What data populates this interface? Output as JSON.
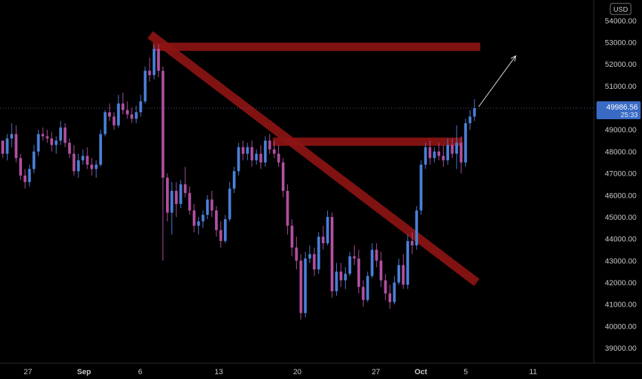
{
  "chart_data": {
    "type": "candlestick",
    "title": "",
    "xlabel": "",
    "ylabel": "",
    "currency_label": "USD",
    "ylim": [
      38400,
      54500
    ],
    "y_ticks": [
      39000,
      40000,
      41000,
      42000,
      43000,
      44000,
      45000,
      46000,
      47000,
      48000,
      49000,
      50000,
      51000,
      52000,
      53000,
      54000
    ],
    "y_tick_labels": [
      "39000.00",
      "40000.00",
      "41000.00",
      "42000.00",
      "43000.00",
      "44000.00",
      "45000.00",
      "46000.00",
      "47000.00",
      "48000.00",
      "49000.00",
      "50000.00",
      "51000.00",
      "52000.00",
      "53000.00",
      "54000.00"
    ],
    "x_ticks": [
      {
        "label": "27",
        "day": -5
      },
      {
        "label": "Sep",
        "day": 0
      },
      {
        "label": "6",
        "day": 5
      },
      {
        "label": "13",
        "day": 12
      },
      {
        "label": "20",
        "day": 19
      },
      {
        "label": "27",
        "day": 26
      },
      {
        "label": "Oct",
        "day": 30
      },
      {
        "label": "5",
        "day": 34
      },
      {
        "label": "11",
        "day": 40
      },
      {
        "label": "18",
        "day": 47
      }
    ],
    "last_price": "49986.56",
    "countdown": "25:33",
    "up_color": "#4a7fd6",
    "down_color": "#b14fa0",
    "zone_color": "#8c1414",
    "candles": [
      [
        48500,
        48500,
        47700,
        47900
      ],
      [
        47900,
        48800,
        47600,
        48600
      ],
      [
        48600,
        49300,
        48200,
        48800
      ],
      [
        48800,
        49200,
        47500,
        47700
      ],
      [
        47700,
        47900,
        46700,
        46900
      ],
      [
        46900,
        47200,
        46300,
        46600
      ],
      [
        46600,
        47400,
        46400,
        47200
      ],
      [
        47200,
        48300,
        47000,
        48000
      ],
      [
        48000,
        49000,
        47800,
        48800
      ],
      [
        48800,
        49100,
        48500,
        48700
      ],
      [
        48700,
        49000,
        48400,
        48600
      ],
      [
        48600,
        48900,
        48000,
        48300
      ],
      [
        48300,
        48700,
        47900,
        48500
      ],
      [
        48500,
        49400,
        48300,
        49100
      ],
      [
        49100,
        49300,
        48200,
        48400
      ],
      [
        48400,
        48600,
        47700,
        47900
      ],
      [
        47900,
        48300,
        46900,
        47100
      ],
      [
        47100,
        47900,
        46800,
        47600
      ],
      [
        47600,
        48100,
        47400,
        47800
      ],
      [
        47800,
        48200,
        47200,
        47400
      ],
      [
        47400,
        47700,
        46900,
        47200
      ],
      [
        47200,
        47600,
        46800,
        47400
      ],
      [
        47400,
        49000,
        47300,
        48800
      ],
      [
        48800,
        49900,
        48700,
        49800
      ],
      [
        49800,
        50200,
        49400,
        49600
      ],
      [
        49600,
        49800,
        49000,
        49200
      ],
      [
        49200,
        50600,
        49100,
        50200
      ],
      [
        50200,
        50700,
        49700,
        49900
      ],
      [
        49900,
        50300,
        49500,
        49700
      ],
      [
        49700,
        50000,
        49300,
        49500
      ],
      [
        49500,
        50100,
        49300,
        49800
      ],
      [
        49800,
        50600,
        49600,
        50300
      ],
      [
        50300,
        51900,
        50200,
        51700
      ],
      [
        51700,
        52300,
        51200,
        51500
      ],
      [
        51500,
        52900,
        51300,
        52700
      ],
      [
        52700,
        52900,
        51400,
        51700
      ],
      [
        51700,
        51900,
        43000,
        46800
      ],
      [
        46800,
        47000,
        44800,
        45200
      ],
      [
        45200,
        46600,
        44200,
        46200
      ],
      [
        46200,
        46600,
        45000,
        45600
      ],
      [
        45600,
        46700,
        45400,
        46500
      ],
      [
        46500,
        47300,
        45900,
        46100
      ],
      [
        46100,
        46400,
        45100,
        45300
      ],
      [
        45300,
        45600,
        44300,
        44600
      ],
      [
        44600,
        45000,
        44200,
        44800
      ],
      [
        44800,
        45300,
        44500,
        45100
      ],
      [
        45100,
        46000,
        44900,
        45800
      ],
      [
        45800,
        46200,
        45000,
        45300
      ],
      [
        45300,
        45500,
        44100,
        44400
      ],
      [
        44400,
        44800,
        43600,
        43900
      ],
      [
        43900,
        45100,
        43800,
        44900
      ],
      [
        44900,
        46600,
        44800,
        46300
      ],
      [
        46300,
        47300,
        46100,
        47100
      ],
      [
        47100,
        48400,
        46900,
        48200
      ],
      [
        48200,
        48500,
        47600,
        47900
      ],
      [
        47900,
        48400,
        47600,
        48200
      ],
      [
        48200,
        48500,
        47300,
        47600
      ],
      [
        47600,
        48100,
        47400,
        47900
      ],
      [
        47900,
        48300,
        47200,
        47500
      ],
      [
        47500,
        48700,
        47300,
        48500
      ],
      [
        48500,
        48800,
        47900,
        48100
      ],
      [
        48100,
        48500,
        47700,
        47900
      ],
      [
        47900,
        48300,
        47300,
        47500
      ],
      [
        47500,
        47700,
        45900,
        46200
      ],
      [
        46200,
        46500,
        44200,
        44600
      ],
      [
        44600,
        44900,
        43200,
        43600
      ],
      [
        43600,
        44100,
        42600,
        43000
      ],
      [
        43000,
        43300,
        40300,
        40600
      ],
      [
        40600,
        43400,
        40400,
        43100
      ],
      [
        43100,
        43700,
        42900,
        43300
      ],
      [
        43300,
        43600,
        42300,
        42600
      ],
      [
        42600,
        44300,
        42400,
        44100
      ],
      [
        44100,
        44600,
        43500,
        43800
      ],
      [
        43800,
        45300,
        43700,
        45000
      ],
      [
        45000,
        45200,
        41300,
        41600
      ],
      [
        41600,
        42900,
        41400,
        42500
      ],
      [
        42500,
        42900,
        41800,
        42100
      ],
      [
        42100,
        42700,
        41700,
        42400
      ],
      [
        42400,
        43400,
        42300,
        43200
      ],
      [
        43200,
        43700,
        42800,
        43100
      ],
      [
        43100,
        43500,
        41500,
        41800
      ],
      [
        41800,
        42100,
        40900,
        41200
      ],
      [
        41200,
        42500,
        41100,
        42300
      ],
      [
        42300,
        43800,
        42200,
        43500
      ],
      [
        43500,
        43800,
        42700,
        43000
      ],
      [
        43000,
        43400,
        41800,
        42100
      ],
      [
        42100,
        42400,
        41200,
        41500
      ],
      [
        41500,
        41900,
        40800,
        41100
      ],
      [
        41100,
        42300,
        41000,
        42000
      ],
      [
        42000,
        43100,
        41900,
        42800
      ],
      [
        42800,
        43300,
        41700,
        41900
      ],
      [
        41900,
        44200,
        41700,
        43900
      ],
      [
        43900,
        44300,
        43300,
        43700
      ],
      [
        43700,
        45500,
        43500,
        45300
      ],
      [
        45300,
        47600,
        45100,
        47400
      ],
      [
        47400,
        48400,
        47200,
        48200
      ],
      [
        48200,
        48500,
        47400,
        47700
      ],
      [
        47700,
        48200,
        47500,
        48000
      ],
      [
        48000,
        48400,
        47600,
        47800
      ],
      [
        47800,
        48300,
        47300,
        47600
      ],
      [
        47600,
        48600,
        47400,
        48300
      ],
      [
        48300,
        48600,
        47700,
        47900
      ],
      [
        47900,
        49200,
        47200,
        48400
      ],
      [
        48400,
        48700,
        47000,
        47500
      ],
      [
        47500,
        49500,
        47300,
        49300
      ],
      [
        49300,
        49900,
        49000,
        49600
      ],
      [
        49600,
        50400,
        49400,
        49987
      ]
    ],
    "annotations": [
      {
        "type": "horizontal-zone",
        "name": "upper-resistance-zone",
        "price": 52800,
        "from_index": 34,
        "to_index": 107
      },
      {
        "type": "horizontal-zone",
        "name": "breakout-zone",
        "price": 48450,
        "from_index": 61,
        "to_index": 103
      },
      {
        "type": "trendline",
        "name": "descending-trendline",
        "from_index": 35,
        "from_price": 53350,
        "to_index": 98,
        "to_price": 42000
      },
      {
        "type": "arrow",
        "name": "target-arrow",
        "from_index": 89,
        "from_price": 49800,
        "to_index": 95,
        "to_price": 52700
      }
    ]
  }
}
